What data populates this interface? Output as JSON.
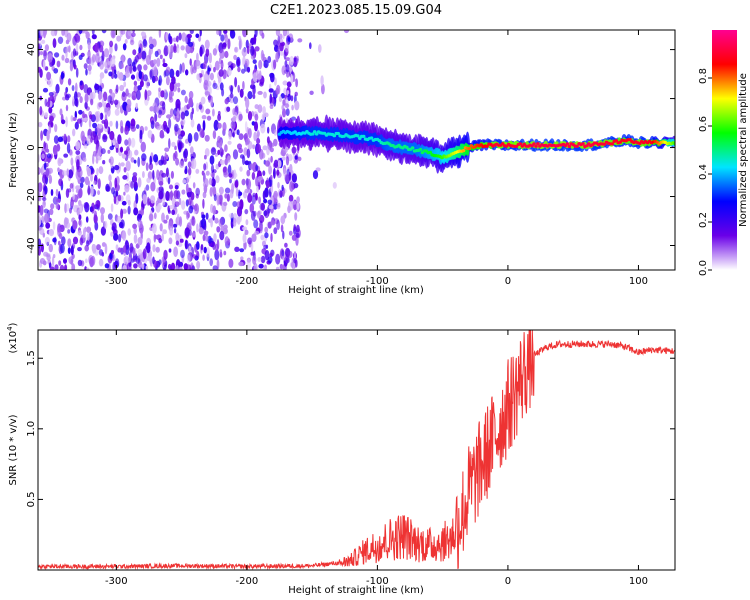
{
  "figure_title": "C2E1.2023.085.15.09.G04",
  "chart_data": [
    {
      "type": "heatmap",
      "xlabel": "Height of straight line (km)",
      "ylabel": "Frequency (Hz)",
      "xlim": [
        -360,
        128
      ],
      "ylim": [
        -50,
        48
      ],
      "xticks": [
        -300,
        -200,
        -100,
        0,
        100
      ],
      "yticks": [
        -40,
        -20,
        0,
        20,
        40
      ],
      "colorbar": {
        "label": "Normalized spectral amplitude",
        "range": [
          0.0,
          1.0
        ],
        "ticks": [
          "0.0",
          "0.2",
          "0.4",
          "0.6",
          "0.8"
        ],
        "colors": [
          "#ffffff",
          "#6a00e8",
          "#0000ff",
          "#00e5ff",
          "#00ff00",
          "#ffff00",
          "#ff0000",
          "#ff0090"
        ]
      },
      "noise_region_km": [
        -360,
        -160
      ],
      "signal_trace": {
        "height_km": [
          -175,
          -150,
          -125,
          -110,
          -100,
          -90,
          -80,
          -70,
          -60,
          -50,
          -40,
          -30,
          -20,
          -10,
          0,
          20,
          40,
          60,
          80,
          90,
          100,
          110,
          128
        ],
        "frequency_hz": [
          6,
          6,
          5,
          4,
          3,
          1,
          0,
          -1,
          -2,
          -4,
          -2,
          0,
          1,
          1,
          1,
          1,
          1,
          1,
          2,
          3,
          2,
          2,
          2
        ],
        "peak_amplitude": [
          0.4,
          0.45,
          0.45,
          0.45,
          0.45,
          0.5,
          0.5,
          0.5,
          0.55,
          0.6,
          0.7,
          0.8,
          0.85,
          0.9,
          0.9,
          0.92,
          0.92,
          0.92,
          0.9,
          0.88,
          0.9,
          0.88,
          0.6
        ]
      }
    },
    {
      "type": "line",
      "xlabel": "Height of straight line (km)",
      "ylabel": "SNR (10 * v/v)",
      "yscale_label": "(x10",
      "yscale_exp": "4",
      "xlim": [
        -360,
        128
      ],
      "ylim": [
        0,
        17000
      ],
      "xticks": [
        -300,
        -200,
        -100,
        0,
        100
      ],
      "yticks": [
        "0.5",
        "1.0",
        "1.5"
      ],
      "color": "#ee3333",
      "series": [
        {
          "x": [
            -360,
            -300,
            -250,
            -200,
            -150,
            -130,
            -120,
            -110,
            -100,
            -90,
            -80,
            -70,
            -60,
            -50,
            -45,
            -40,
            -35,
            -30,
            -25,
            -20,
            -15,
            -10,
            -5,
            0,
            5,
            10,
            15,
            20,
            30,
            40,
            60,
            80,
            90,
            95,
            100,
            110,
            128
          ],
          "y": [
            250,
            250,
            300,
            250,
            300,
            500,
            800,
            1500,
            2000,
            2500,
            2800,
            2200,
            2000,
            2200,
            2500,
            3000,
            4000,
            5500,
            6500,
            7500,
            8500,
            9500,
            10500,
            11500,
            12500,
            13500,
            14500,
            15200,
            15800,
            16000,
            16000,
            16000,
            15800,
            15600,
            15400,
            15600,
            15500
          ]
        }
      ]
    }
  ]
}
